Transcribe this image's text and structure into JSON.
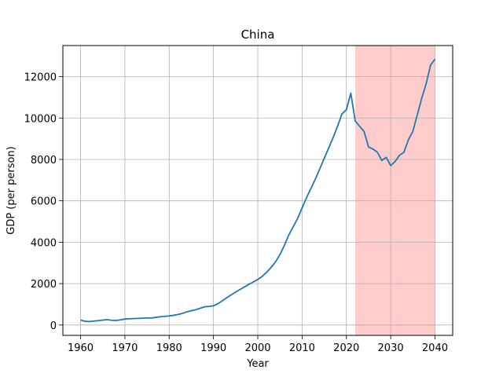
{
  "chart_data": {
    "type": "line",
    "title": "China",
    "xlabel": "Year",
    "ylabel": "GDP (per person)",
    "xlim": [
      1956,
      2044
    ],
    "ylim": [
      -500,
      13500
    ],
    "xticks": [
      1960,
      1970,
      1980,
      1990,
      2000,
      2010,
      2020,
      2030,
      2040
    ],
    "yticks": [
      0,
      2000,
      4000,
      6000,
      8000,
      10000,
      12000
    ],
    "grid": true,
    "line_color": "#1f77b4",
    "shaded_region": {
      "x_start": 2022,
      "x_end": 2040,
      "color": "#ffcccc"
    },
    "series": [
      {
        "x": [
          1960,
          1961,
          1962,
          1963,
          1964,
          1965,
          1966,
          1967,
          1968,
          1969,
          1970,
          1971,
          1972,
          1973,
          1974,
          1975,
          1976,
          1977,
          1978,
          1979,
          1980,
          1981,
          1982,
          1983,
          1984,
          1985,
          1986,
          1987,
          1988,
          1989,
          1990,
          1991,
          1992,
          1993,
          1994,
          1995,
          1996,
          1997,
          1998,
          1999,
          2000,
          2001,
          2002,
          2003,
          2004,
          2005,
          2006,
          2007,
          2008,
          2009,
          2010,
          2011,
          2012,
          2013,
          2014,
          2015,
          2016,
          2017,
          2018,
          2019,
          2020,
          2021,
          2022,
          2023,
          2024,
          2025,
          2026,
          2027,
          2028,
          2029,
          2030,
          2031,
          2032,
          2033,
          2034,
          2035,
          2036,
          2037,
          2038,
          2039,
          2040
        ],
        "values": [
          240,
          180,
          170,
          190,
          210,
          240,
          260,
          230,
          220,
          250,
          290,
          300,
          310,
          320,
          330,
          340,
          340,
          370,
          400,
          420,
          440,
          470,
          510,
          560,
          640,
          690,
          740,
          810,
          880,
          900,
          930,
          1030,
          1170,
          1320,
          1460,
          1590,
          1720,
          1840,
          1970,
          2080,
          2200,
          2350,
          2550,
          2780,
          3050,
          3400,
          3850,
          4350,
          4750,
          5150,
          5650,
          6150,
          6600,
          7050,
          7550,
          8050,
          8550,
          9050,
          9600,
          10200,
          10400,
          11200,
          9850,
          9600,
          9350,
          8600,
          8500,
          8350,
          7950,
          8100,
          7700,
          7900,
          8200,
          8350,
          8950,
          9350,
          10150,
          10950,
          11650,
          12550,
          12850
        ]
      }
    ]
  }
}
